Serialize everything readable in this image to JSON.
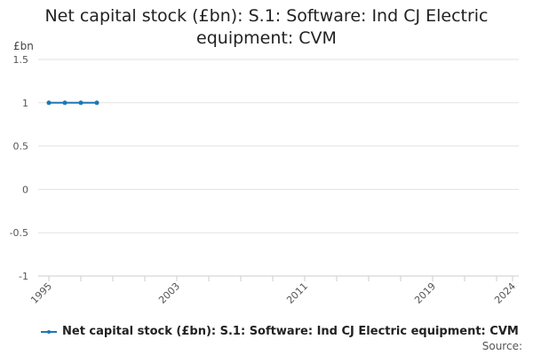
{
  "chart_data": {
    "type": "line",
    "title": "Net capital stock (£bn): S.1: Software: Ind CJ Electric equipment: CVM",
    "unit_label": "£bn",
    "ylim": [
      -1,
      1.5
    ],
    "y_ticks": [
      1.5,
      1,
      0.5,
      0,
      -0.5,
      -1
    ],
    "x_ticks": [
      1995,
      2003,
      2011,
      2019,
      2024
    ],
    "xlim": [
      1995,
      2024
    ],
    "grid": true,
    "legend_position": "bottom",
    "series": [
      {
        "name": "Net capital stock (£bn): S.1: Software: Ind CJ Electric equipment: CVM",
        "color": "#1f77b4",
        "points": [
          {
            "x": 1995,
            "y": 1
          },
          {
            "x": 1996,
            "y": 1
          },
          {
            "x": 1997,
            "y": 1
          },
          {
            "x": 1998,
            "y": 1
          }
        ]
      }
    ]
  },
  "footer": {
    "source_label": "Source:"
  }
}
